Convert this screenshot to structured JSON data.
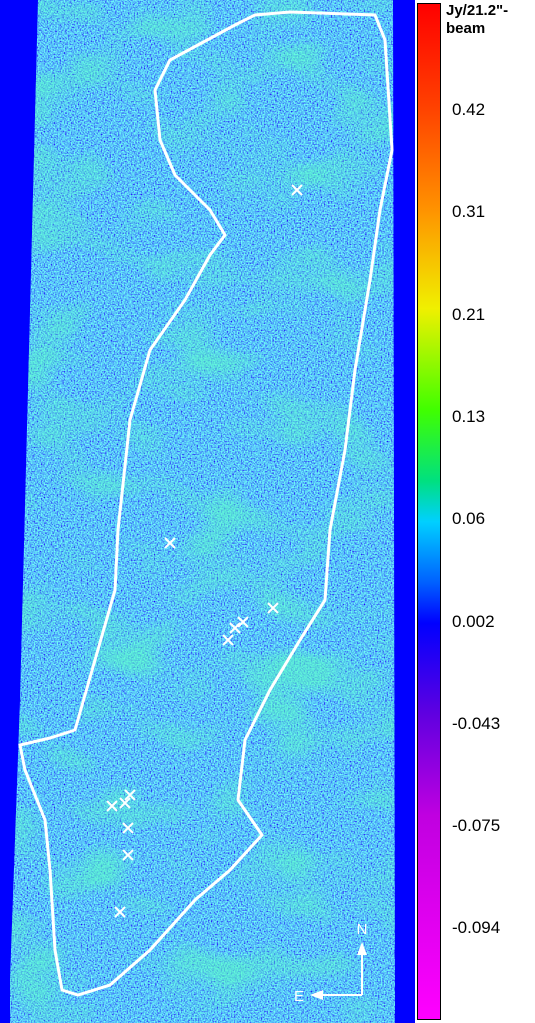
{
  "colorbar": {
    "title_lines": [
      "Jy/21.2\"-",
      "beam"
    ],
    "ticks": [
      0.42,
      0.31,
      0.21,
      0.13,
      0.06,
      0.002,
      -0.043,
      -0.075,
      -0.094
    ]
  },
  "compass": {
    "north": "N",
    "east": "E"
  }
}
